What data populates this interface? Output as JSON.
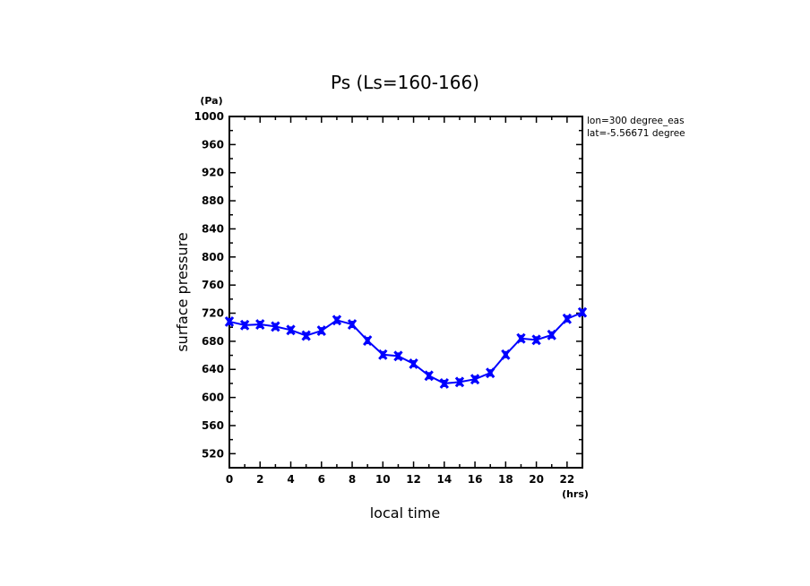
{
  "chart_data": {
    "type": "line",
    "title": "Ps (Ls=160-166)",
    "xlabel": "local time",
    "ylabel": "surface pressure",
    "x_unit": "(hrs)",
    "y_unit": "(Pa)",
    "xlim": [
      0,
      23
    ],
    "ylim": [
      500,
      1000
    ],
    "x_ticks": [
      0,
      2,
      4,
      6,
      8,
      10,
      12,
      14,
      16,
      18,
      20,
      22
    ],
    "x_tick_labels": [
      "0",
      "2",
      "4",
      "6",
      "8",
      "10",
      "12",
      "14",
      "16",
      "18",
      "20",
      "22"
    ],
    "y_ticks": [
      520,
      560,
      600,
      640,
      680,
      720,
      760,
      800,
      840,
      880,
      920,
      960,
      1000
    ],
    "y_tick_labels": [
      "520",
      "560",
      "600",
      "640",
      "680",
      "720",
      "760",
      "800",
      "840",
      "880",
      "920",
      "960",
      "1000"
    ],
    "grid": false,
    "annotations": [
      "lon=300 degree_eas",
      "lat=-5.56671 degree"
    ],
    "series": [
      {
        "name": "Ps",
        "color": "#0000ff",
        "marker": "x",
        "x": [
          0,
          1,
          2,
          3,
          4,
          5,
          6,
          7,
          8,
          9,
          10,
          11,
          12,
          13,
          14,
          15,
          16,
          17,
          18,
          19,
          20,
          21,
          22,
          23
        ],
        "values": [
          708,
          703,
          704,
          701,
          696,
          688,
          695,
          710,
          704,
          681,
          661,
          659,
          648,
          631,
          620,
          622,
          626,
          635,
          661,
          684,
          682,
          689,
          712,
          721
        ]
      }
    ]
  }
}
